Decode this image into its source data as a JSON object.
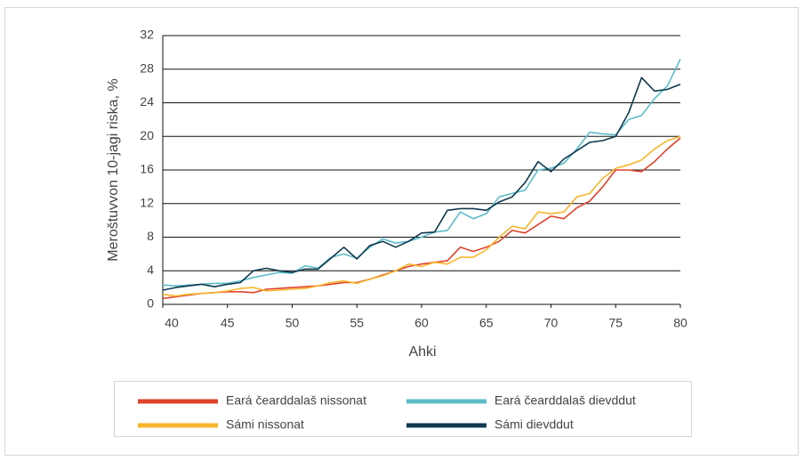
{
  "chart_data": {
    "type": "line",
    "x_label": "Ahki",
    "y_label": "Meroštuvvon 10-jagi riska, %",
    "x": [
      40,
      41,
      42,
      43,
      44,
      45,
      46,
      47,
      48,
      49,
      50,
      51,
      52,
      53,
      54,
      55,
      56,
      57,
      58,
      59,
      60,
      61,
      62,
      63,
      64,
      65,
      66,
      67,
      68,
      69,
      70,
      71,
      72,
      73,
      74,
      75,
      76,
      77,
      78,
      79,
      80
    ],
    "series": [
      {
        "name": "Eará čearddalaš nissonat",
        "color": "#e0432b",
        "values": [
          0.7,
          0.9,
          1.1,
          1.3,
          1.4,
          1.5,
          1.5,
          1.4,
          1.8,
          1.9,
          2.0,
          2.1,
          2.2,
          2.4,
          2.6,
          2.6,
          3.0,
          3.5,
          4.0,
          4.5,
          4.8,
          5.0,
          5.2,
          6.8,
          6.3,
          6.8,
          7.5,
          8.8,
          8.5,
          9.5,
          10.5,
          10.2,
          11.5,
          12.3,
          14.0,
          16.0,
          16.0,
          15.8,
          17.0,
          18.5,
          19.8
        ]
      },
      {
        "name": "Eará čearddalaš dievddut",
        "color": "#5bbcc8",
        "values": [
          2.3,
          2.2,
          2.3,
          2.4,
          2.5,
          2.5,
          2.8,
          3.2,
          3.5,
          3.8,
          3.7,
          4.6,
          4.3,
          5.6,
          6.0,
          5.5,
          6.8,
          7.8,
          7.3,
          7.5,
          8.0,
          8.6,
          8.8,
          11.0,
          10.2,
          10.8,
          12.8,
          13.2,
          13.6,
          16.0,
          16.2,
          16.8,
          18.5,
          20.5,
          20.3,
          20.2,
          22.0,
          22.5,
          24.5,
          26.0,
          29.2
        ]
      },
      {
        "name": "Sámi nissonat",
        "color": "#f7b52b",
        "values": [
          1.2,
          1.0,
          1.2,
          1.3,
          1.4,
          1.6,
          1.9,
          2.0,
          1.6,
          1.7,
          1.8,
          1.9,
          2.2,
          2.6,
          2.8,
          2.5,
          3.0,
          3.4,
          4.0,
          4.8,
          4.5,
          5.0,
          4.8,
          5.6,
          5.6,
          6.5,
          8.0,
          9.3,
          9.0,
          11.0,
          10.8,
          11.0,
          12.8,
          13.2,
          15.0,
          16.2,
          16.6,
          17.2,
          18.5,
          19.5,
          20.0
        ]
      },
      {
        "name": "Sámi dievddut",
        "color": "#0f3a4f",
        "values": [
          1.7,
          2.0,
          2.2,
          2.4,
          2.1,
          2.4,
          2.6,
          4.0,
          4.3,
          4.0,
          3.8,
          4.2,
          4.2,
          5.5,
          6.8,
          5.4,
          7.0,
          7.5,
          6.8,
          7.5,
          8.5,
          8.6,
          11.2,
          11.4,
          11.4,
          11.2,
          12.2,
          12.8,
          14.5,
          17.0,
          15.8,
          17.3,
          18.3,
          19.3,
          19.5,
          20.0,
          22.8,
          27.0,
          25.4,
          25.6,
          26.2
        ]
      }
    ],
    "xlim": [
      40,
      80
    ],
    "xticks": [
      40,
      45,
      50,
      55,
      60,
      65,
      70,
      75,
      80
    ],
    "ylim": [
      0,
      32
    ],
    "yticks": [
      0,
      4,
      8,
      12,
      16,
      20,
      24,
      28,
      32
    ],
    "grid": true
  }
}
